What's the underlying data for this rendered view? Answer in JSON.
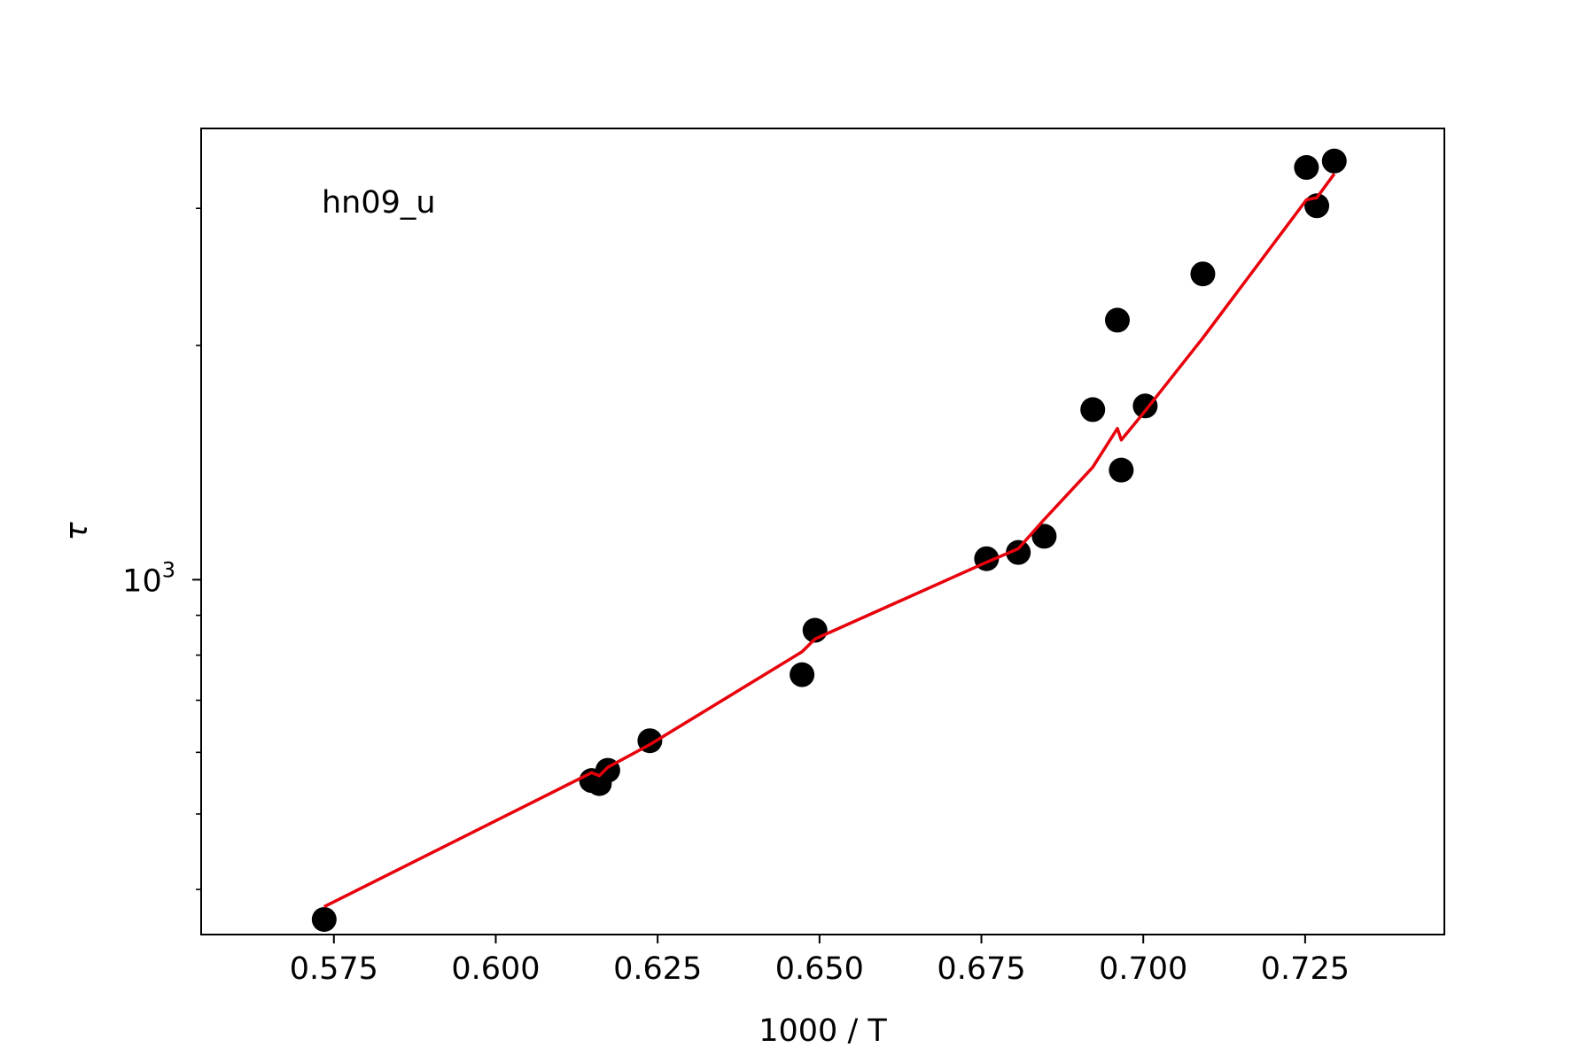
{
  "chart_data": {
    "type": "scatter",
    "title": "",
    "annotation": "hn09_u",
    "xlabel": "1000 / T",
    "ylabel": "τ",
    "xlim": [
      0.5545,
      0.7465
    ],
    "ylim": [
      350,
      3800
    ],
    "yscale": "log",
    "grid": false,
    "x_ticks": [
      0.575,
      0.6,
      0.625,
      0.65,
      0.675,
      0.7,
      0.725
    ],
    "x_tick_labels": [
      "0.575",
      "0.600",
      "0.625",
      "0.650",
      "0.675",
      "0.700",
      "0.725"
    ],
    "y_major_ticks": [
      1000
    ],
    "y_major_tick_labels": [
      {
        "base": "10",
        "exp": "3"
      }
    ],
    "y_minor_ticks": [
      400,
      500,
      600,
      700,
      800,
      900,
      2000,
      3000
    ],
    "series": [
      {
        "kind": "scatter",
        "color": "#000000",
        "points": [
          {
            "x": 0.5735,
            "y": 366
          },
          {
            "x": 0.6148,
            "y": 552
          },
          {
            "x": 0.616,
            "y": 547
          },
          {
            "x": 0.6173,
            "y": 569
          },
          {
            "x": 0.6238,
            "y": 621
          },
          {
            "x": 0.6473,
            "y": 755
          },
          {
            "x": 0.6493,
            "y": 861
          },
          {
            "x": 0.6758,
            "y": 1064
          },
          {
            "x": 0.6807,
            "y": 1084
          },
          {
            "x": 0.6847,
            "y": 1137
          },
          {
            "x": 0.6922,
            "y": 1654
          },
          {
            "x": 0.696,
            "y": 2155
          },
          {
            "x": 0.6966,
            "y": 1383
          },
          {
            "x": 0.7003,
            "y": 1672
          },
          {
            "x": 0.7092,
            "y": 2471
          },
          {
            "x": 0.7252,
            "y": 3386
          },
          {
            "x": 0.7268,
            "y": 3023
          },
          {
            "x": 0.7295,
            "y": 3451
          }
        ]
      },
      {
        "kind": "line",
        "color": "#e8000b",
        "points": [
          {
            "x": 0.5735,
            "y": 380
          },
          {
            "x": 0.6148,
            "y": 565
          },
          {
            "x": 0.616,
            "y": 560
          },
          {
            "x": 0.6173,
            "y": 574
          },
          {
            "x": 0.6238,
            "y": 614
          },
          {
            "x": 0.6473,
            "y": 808
          },
          {
            "x": 0.6493,
            "y": 839
          },
          {
            "x": 0.6758,
            "y": 1053
          },
          {
            "x": 0.6807,
            "y": 1096
          },
          {
            "x": 0.6847,
            "y": 1195
          },
          {
            "x": 0.6922,
            "y": 1395
          },
          {
            "x": 0.696,
            "y": 1564
          },
          {
            "x": 0.6966,
            "y": 1512
          },
          {
            "x": 0.7003,
            "y": 1648
          },
          {
            "x": 0.7092,
            "y": 2044
          },
          {
            "x": 0.7252,
            "y": 3077
          },
          {
            "x": 0.7268,
            "y": 3096
          },
          {
            "x": 0.7295,
            "y": 3322
          }
        ]
      }
    ]
  }
}
